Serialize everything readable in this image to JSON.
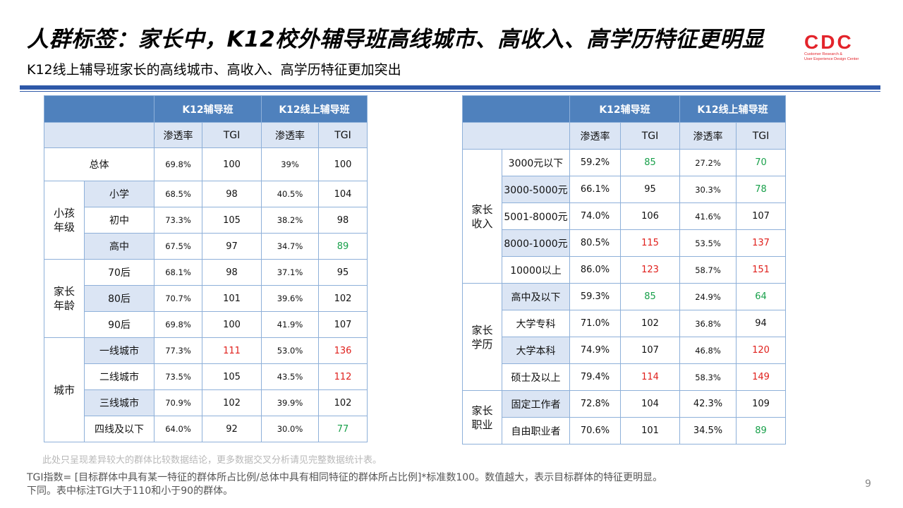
{
  "header": {
    "title": "人群标签：家长中，K12校外辅导班高线城市、高收入、高学历特征更明显",
    "subtitle": "K12线上辅导班家长的高线城市、高收入、高学历特征更加突出"
  },
  "logo": {
    "mark": "CDC",
    "line1": "Customer Research &",
    "line2": "User Experience Design Center",
    "color": "#e3242b"
  },
  "colors": {
    "header_blue": "#4f81bd",
    "light_blue": "#dbe5f4",
    "rule": "#2e58a8",
    "high": "#e0201c",
    "low": "#18a04a"
  },
  "left_table": {
    "col_groups": [
      "K12辅导班",
      "K12线上辅导班"
    ],
    "sub_headers": [
      "渗透率",
      "TGI",
      "渗透率",
      "TGI"
    ],
    "total": {
      "label": "总体",
      "values": [
        "69.8%",
        "100",
        "39%",
        "100"
      ]
    },
    "groups": [
      {
        "label": "小孩\n年级",
        "rows": [
          {
            "label": "小学",
            "values": [
              "68.5%",
              "98",
              "40.5%",
              "104"
            ]
          },
          {
            "label": "初中",
            "values": [
              "73.3%",
              "105",
              "38.2%",
              "98"
            ]
          },
          {
            "label": "高中",
            "values": [
              "67.5%",
              "97",
              "34.7%",
              "89"
            ]
          }
        ]
      },
      {
        "label": "家长\n年龄",
        "rows": [
          {
            "label": "70后",
            "values": [
              "68.1%",
              "98",
              "37.1%",
              "95"
            ]
          },
          {
            "label": "80后",
            "values": [
              "70.7%",
              "101",
              "39.6%",
              "102"
            ]
          },
          {
            "label": "90后",
            "values": [
              "69.8%",
              "100",
              "41.9%",
              "107"
            ]
          }
        ]
      },
      {
        "label": "城市",
        "rows": [
          {
            "label": "一线城市",
            "values": [
              "77.3%",
              "111",
              "53.0%",
              "136"
            ]
          },
          {
            "label": "二线城市",
            "values": [
              "73.5%",
              "105",
              "43.5%",
              "112"
            ]
          },
          {
            "label": "三线城市",
            "values": [
              "70.9%",
              "102",
              "39.9%",
              "102"
            ]
          },
          {
            "label": "四线及以下",
            "values": [
              "64.0%",
              "92",
              "30.0%",
              "77"
            ]
          }
        ]
      }
    ]
  },
  "right_table": {
    "col_groups": [
      "K12辅导班",
      "K12线上辅导班"
    ],
    "sub_headers": [
      "渗透率",
      "TGI",
      "渗透率",
      "TGI"
    ],
    "groups": [
      {
        "label": "家长\n收入",
        "rows": [
          {
            "label": "3000元以下",
            "values": [
              "59.2%",
              "85",
              "27.2%",
              "70"
            ]
          },
          {
            "label": "3000-5000元",
            "values": [
              "66.1%",
              "95",
              "30.3%",
              "78"
            ]
          },
          {
            "label": "5001-8000元",
            "values": [
              "74.0%",
              "106",
              "41.6%",
              "107"
            ]
          },
          {
            "label": "8000-1000元",
            "values": [
              "80.5%",
              "115",
              "53.5%",
              "137"
            ]
          },
          {
            "label": "10000以上",
            "values": [
              "86.0%",
              "123",
              "58.7%",
              "151"
            ]
          }
        ]
      },
      {
        "label": "家长\n学历",
        "rows": [
          {
            "label": "高中及以下",
            "values": [
              "59.3%",
              "85",
              "24.9%",
              "64"
            ]
          },
          {
            "label": "大学专科",
            "values": [
              "71.0%",
              "102",
              "36.8%",
              "94"
            ]
          },
          {
            "label": "大学本科",
            "values": [
              "74.9%",
              "107",
              "46.8%",
              "120"
            ]
          },
          {
            "label": "硕士及以上",
            "values": [
              "79.4%",
              "114",
              "58.3%",
              "149"
            ]
          }
        ]
      },
      {
        "label": "家长\n职业",
        "rows": [
          {
            "label": "固定工作者",
            "values": [
              "72.8%",
              "104",
              "42.3%",
              "109"
            ]
          },
          {
            "label": "自由职业者",
            "values": [
              "70.6%",
              "101",
              "34.5%",
              "89"
            ]
          }
        ]
      }
    ]
  },
  "notes": {
    "grey": "此处只呈现差异较大的群体比较数据结论，更多数据交叉分析请见完整数据统计表。",
    "tgi_line1": "TGI指数= [目标群体中具有某一特征的群体所占比例/总体中具有相同特征的群体所占比例]*标准数100。数值越大，表示目标群体的特征更明显。",
    "tgi_line2": "下同。表中标注TGI大于110和小于90的群体。",
    "page": "9"
  }
}
